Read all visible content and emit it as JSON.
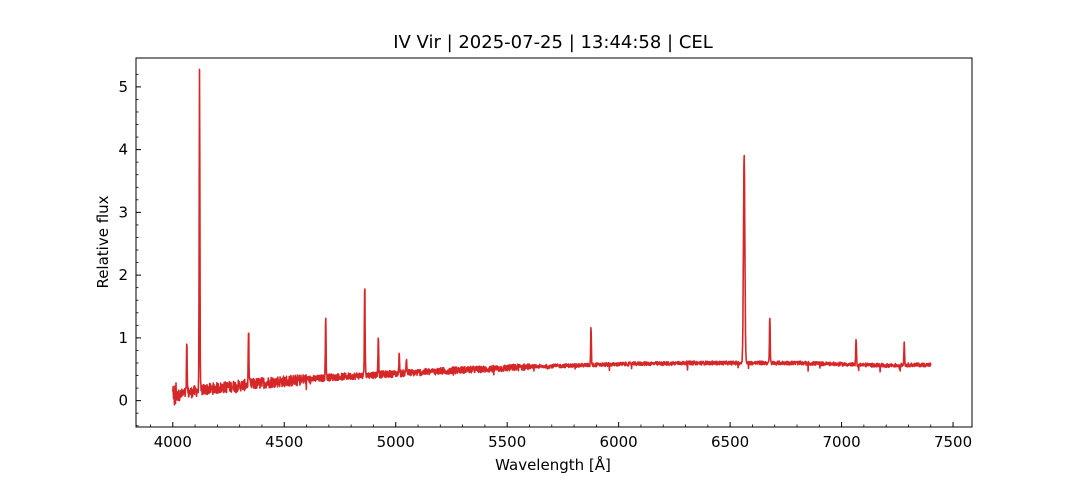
{
  "chart_data": {
    "type": "line",
    "title": "IV Vir | 2025-07-25 | 13:44:58 | CEL",
    "xlabel": "Wavelength [Å]",
    "ylabel": "Relative flux",
    "xlim": [
      3835,
      7585
    ],
    "ylim": [
      -0.42,
      5.46
    ],
    "xticks": [
      4000,
      4500,
      5000,
      5500,
      6000,
      6500,
      7000,
      7500
    ],
    "yticks": [
      0,
      1,
      2,
      3,
      4,
      5
    ],
    "xtick_labels": [
      "4000",
      "4500",
      "5000",
      "5500",
      "6000",
      "6500",
      "7000",
      "7500"
    ],
    "ytick_labels": [
      "0",
      "1",
      "2",
      "3",
      "4",
      "5"
    ],
    "grid": false,
    "line_color": "#d62728",
    "series": [
      {
        "x": [
          4000,
          4020,
          4040,
          4060,
          4080,
          4100,
          4150,
          4200,
          4250,
          4300,
          4350,
          4400,
          4450,
          4500,
          4550,
          4600,
          4650,
          4700,
          4750,
          4800,
          4850,
          4900,
          5000,
          5100,
          5200,
          5300,
          5400,
          5500,
          5600,
          5700,
          5800,
          5900,
          6000,
          6100,
          6200,
          6300,
          6400,
          6500,
          6600,
          6700,
          6800,
          6900,
          7000,
          7100,
          7200,
          7300,
          7400
        ],
        "y": [
          0.05,
          0.08,
          0.1,
          0.12,
          0.13,
          0.15,
          0.18,
          0.2,
          0.22,
          0.24,
          0.26,
          0.28,
          0.3,
          0.31,
          0.32,
          0.34,
          0.35,
          0.37,
          0.38,
          0.39,
          0.4,
          0.41,
          0.43,
          0.45,
          0.47,
          0.49,
          0.5,
          0.52,
          0.54,
          0.55,
          0.56,
          0.57,
          0.58,
          0.59,
          0.59,
          0.6,
          0.6,
          0.6,
          0.6,
          0.6,
          0.6,
          0.59,
          0.58,
          0.57,
          0.56,
          0.57,
          0.57
        ],
        "emission_lines": [
          {
            "x": 4063,
            "peak": 0.9
          },
          {
            "x": 4120,
            "peak": 5.2
          },
          {
            "x": 4340,
            "peak": 1.1
          },
          {
            "x": 4686,
            "peak": 1.32
          },
          {
            "x": 4861,
            "peak": 1.86
          },
          {
            "x": 4922,
            "peak": 1.04
          },
          {
            "x": 5016,
            "peak": 0.76
          },
          {
            "x": 5048,
            "peak": 0.68
          },
          {
            "x": 5876,
            "peak": 1.16
          },
          {
            "x": 6563,
            "peak": 3.89
          },
          {
            "x": 6678,
            "peak": 1.34
          },
          {
            "x": 7065,
            "peak": 0.98
          },
          {
            "x": 7281,
            "peak": 0.92
          }
        ]
      }
    ]
  }
}
